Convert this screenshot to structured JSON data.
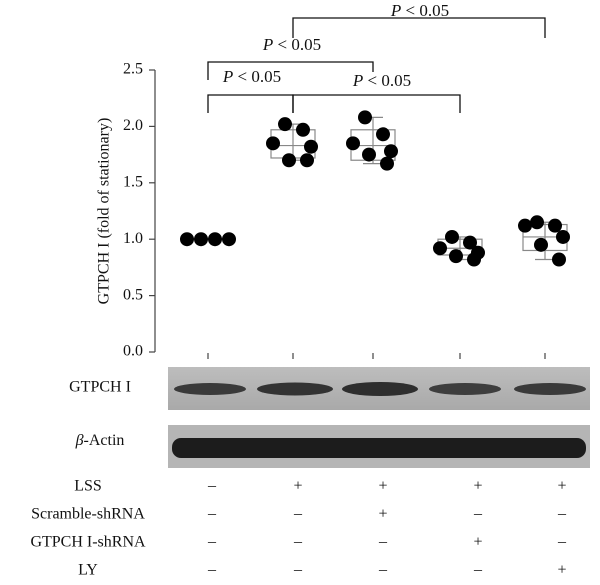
{
  "chart_data": {
    "type": "box",
    "y_label": "GTPCH I (fold of stationary)",
    "categories": [
      null,
      null,
      null,
      null,
      null
    ],
    "ylim": [
      0,
      2.5
    ],
    "yticks": [
      {
        "value": 0,
        "label": "0.0"
      },
      0.5,
      {
        "value": 1,
        "label": "1.0"
      },
      1.5,
      {
        "value": 2,
        "label": "2.0"
      },
      2.5
    ],
    "groups": [
      {
        "points": [
          1,
          1,
          1,
          1
        ],
        "min": 1,
        "q1": 1,
        "median": 1,
        "q3": 1,
        "max": 1
      },
      {
        "points": [
          2.02,
          1.97,
          1.85,
          1.82,
          1.7,
          1.7
        ],
        "min": 1.7,
        "q1": 1.72,
        "median": 1.83,
        "q3": 1.97,
        "max": 2.02
      },
      {
        "points": [
          2.08,
          1.93,
          1.85,
          1.78,
          1.75,
          1.67
        ],
        "min": 1.67,
        "q1": 1.7,
        "median": 1.83,
        "q3": 1.97,
        "max": 2.08
      },
      {
        "points": [
          1.02,
          0.97,
          0.92,
          0.88,
          0.85,
          0.82
        ],
        "min": 0.82,
        "q1": 0.86,
        "median": 0.92,
        "q3": 1.0,
        "max": 1.02
      },
      {
        "points": [
          1.15,
          1.12,
          1.12,
          1.02,
          0.95,
          0.82
        ],
        "min": 0.82,
        "q1": 0.9,
        "median": 1.02,
        "q3": 1.13,
        "max": 1.15
      }
    ],
    "color": "#000000",
    "annotations": [
      "P < 0.05",
      "P < 0.05",
      "P < 0.05",
      "P < 0.05"
    ]
  },
  "blots": [
    "GTPCH I",
    "β-Actin"
  ],
  "table": {
    "rows": [
      {
        "label": "LSS",
        "signs": [
          "–",
          "+",
          "+",
          "+",
          "+"
        ]
      },
      {
        "label": "Scramble-shRNA",
        "signs": [
          "–",
          "–",
          "+",
          "–",
          "–"
        ]
      },
      {
        "label": "GTPCH I-shRNA",
        "signs": [
          "–",
          "–",
          "–",
          "+",
          "–"
        ]
      },
      {
        "label": "LY",
        "signs": [
          "–",
          "–",
          "–",
          "–",
          "+"
        ]
      }
    ]
  }
}
